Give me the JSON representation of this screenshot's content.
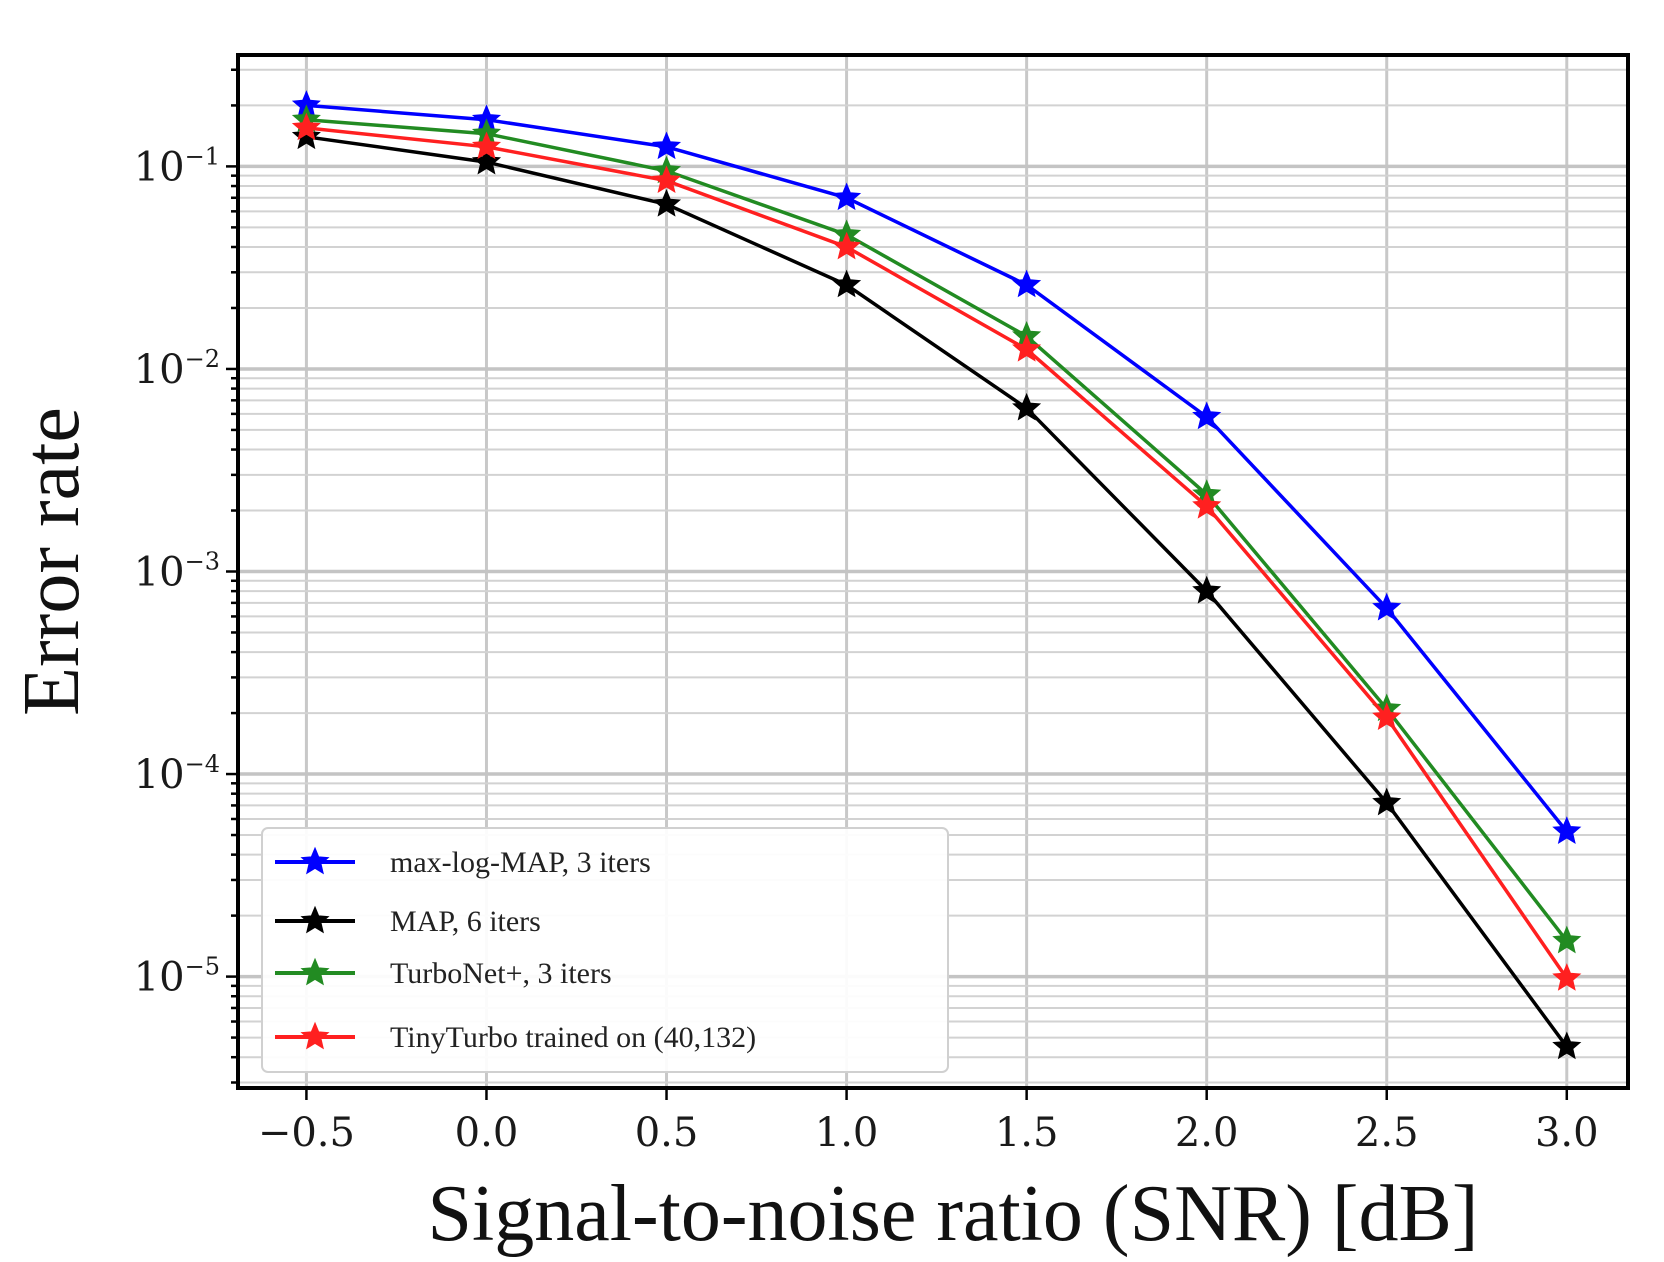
{
  "chart_data": {
    "type": "line",
    "xlabel": "Signal-to-noise ratio (SNR) [dB]",
    "ylabel": "Error rate",
    "xlim": [
      -0.69,
      3.17
    ],
    "ylim_log10": [
      -5.55,
      -0.45
    ],
    "yscale": "log",
    "grid": true,
    "legend_position": "lower-left",
    "x": [
      -0.5,
      0.0,
      0.5,
      1.0,
      1.5,
      2.0,
      2.5,
      3.0
    ],
    "x_tick_labels": [
      "−0.5",
      "0.0",
      "0.5",
      "1.0",
      "1.5",
      "2.0",
      "2.5",
      "3.0"
    ],
    "y_ticks": [
      {
        "value": 0.1,
        "base": "10",
        "exp": "−1"
      },
      {
        "value": 0.01,
        "base": "10",
        "exp": "−2"
      },
      {
        "value": 0.001,
        "base": "10",
        "exp": "−3"
      },
      {
        "value": 0.0001,
        "base": "10",
        "exp": "−4"
      },
      {
        "value": 1e-05,
        "base": "10",
        "exp": "−5"
      }
    ],
    "series": [
      {
        "name": "max-log-MAP, 3 iters",
        "color": "#0000ff",
        "marker": "star",
        "values": [
          0.2,
          0.17,
          0.125,
          0.07,
          0.026,
          0.0058,
          0.00066,
          5.2e-05
        ]
      },
      {
        "name": "MAP, 6 iters",
        "color": "#000000",
        "marker": "star",
        "values": [
          0.14,
          0.105,
          0.065,
          0.026,
          0.0064,
          0.0008,
          7.2e-05,
          4.5e-06
        ]
      },
      {
        "name": "TurboNet+, 3 iters",
        "color": "#228b22",
        "marker": "star",
        "values": [
          0.17,
          0.145,
          0.095,
          0.046,
          0.0145,
          0.0024,
          0.00021,
          1.5e-05
        ]
      },
      {
        "name": "TinyTurbo trained on (40,132)",
        "color": "#ff2020",
        "marker": "star",
        "values": [
          0.155,
          0.125,
          0.085,
          0.04,
          0.0125,
          0.0021,
          0.00019,
          9.8e-06
        ]
      }
    ]
  }
}
